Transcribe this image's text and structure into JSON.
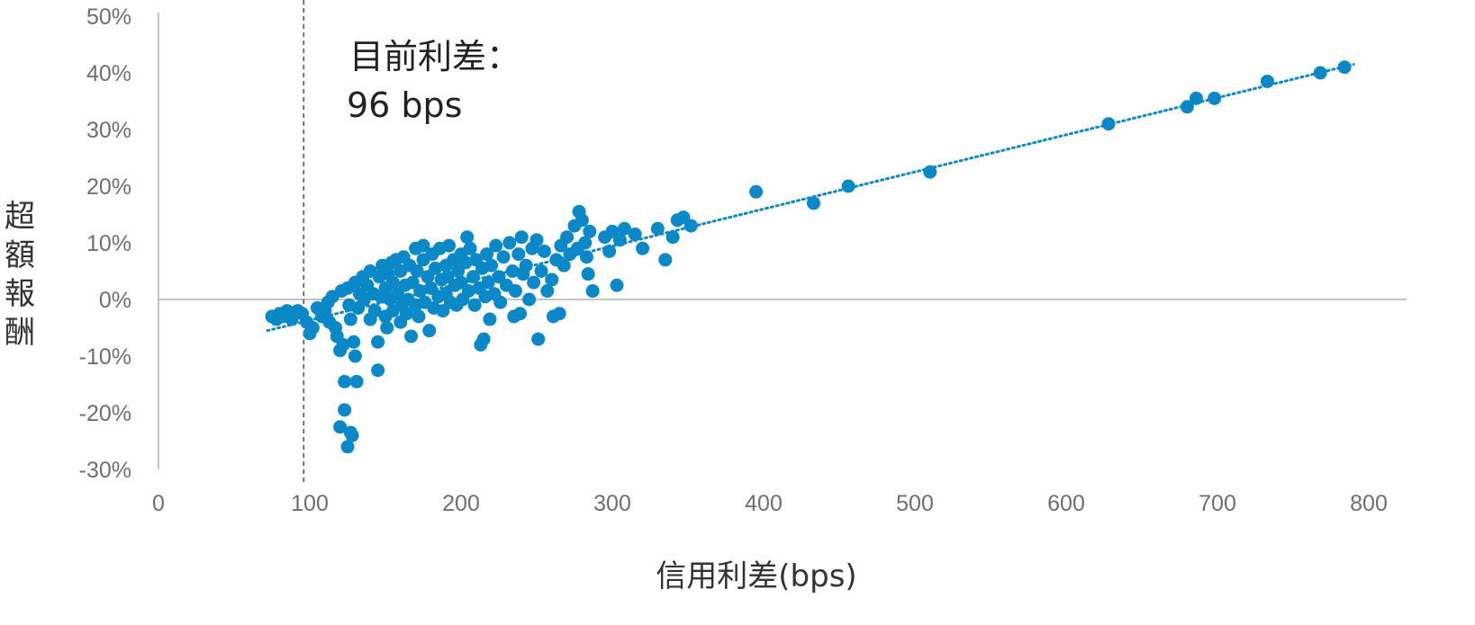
{
  "chart_data": {
    "type": "scatter",
    "title": "",
    "xlabel": "信用利差(bps)",
    "ylabel": "超額報酬",
    "xlim": [
      0,
      800
    ],
    "ylim": [
      -30,
      50
    ],
    "x_ticks": [
      "0",
      "100",
      "200",
      "300",
      "400",
      "500",
      "600",
      "700",
      "800"
    ],
    "y_ticks": [
      "50%",
      "40%",
      "30%",
      "20%",
      "10%",
      "0%",
      "-10%",
      "-20%",
      "-30%"
    ],
    "reference_line": {
      "x": 96,
      "style": "dashed"
    },
    "annotation": [
      "目前利差：",
      "96 bps"
    ],
    "trendline": {
      "style": "dotted",
      "start": [
        72,
        -5.5
      ],
      "end": [
        790,
        41.5
      ]
    },
    "colors": {
      "points": "#0a88c8",
      "trend": "#0a88c8",
      "axis": "#b0b0b0",
      "ref_line": "#555555"
    },
    "series": [
      {
        "points": [
          [
            75,
            -3
          ],
          [
            78,
            -3.5
          ],
          [
            80,
            -2.5
          ],
          [
            82,
            -3
          ],
          [
            85,
            -2
          ],
          [
            88,
            -3.5
          ],
          [
            92,
            -2
          ],
          [
            95,
            -2.5
          ],
          [
            98,
            -4
          ],
          [
            100,
            -6
          ],
          [
            102,
            -5
          ],
          [
            105,
            -1.5
          ],
          [
            108,
            -3
          ],
          [
            110,
            -2
          ],
          [
            112,
            -0.5
          ],
          [
            113,
            -4
          ],
          [
            115,
            0.5
          ],
          [
            117,
            -5
          ],
          [
            118,
            -6.5
          ],
          [
            120,
            -9
          ],
          [
            120,
            -22.5
          ],
          [
            121,
            1.5
          ],
          [
            122,
            -8
          ],
          [
            123,
            -14.5
          ],
          [
            123,
            -19.5
          ],
          [
            125,
            2
          ],
          [
            125,
            -26
          ],
          [
            126,
            -1
          ],
          [
            127,
            -3.5
          ],
          [
            127,
            -23.5
          ],
          [
            128,
            -24
          ],
          [
            129,
            -7.5
          ],
          [
            130,
            3
          ],
          [
            130,
            -10
          ],
          [
            131,
            -14.5
          ],
          [
            132,
            -1.5
          ],
          [
            133,
            1
          ],
          [
            135,
            4
          ],
          [
            136,
            0
          ],
          [
            138,
            2.5
          ],
          [
            140,
            -3.5
          ],
          [
            140,
            5
          ],
          [
            142,
            1
          ],
          [
            143,
            -2
          ],
          [
            145,
            -7.5
          ],
          [
            145,
            -12.5
          ],
          [
            146,
            4
          ],
          [
            147,
            0.5
          ],
          [
            148,
            6
          ],
          [
            150,
            -3
          ],
          [
            150,
            2
          ],
          [
            151,
            -5
          ],
          [
            152,
            4.5
          ],
          [
            153,
            0
          ],
          [
            154,
            6.5
          ],
          [
            155,
            -2
          ],
          [
            155,
            3
          ],
          [
            157,
            7
          ],
          [
            158,
            1
          ],
          [
            160,
            -4
          ],
          [
            160,
            5
          ],
          [
            161,
            -1
          ],
          [
            162,
            7.5
          ],
          [
            163,
            2.5
          ],
          [
            164,
            -2.5
          ],
          [
            165,
            0
          ],
          [
            166,
            6
          ],
          [
            167,
            -6.5
          ],
          [
            168,
            3
          ],
          [
            170,
            9
          ],
          [
            170,
            -1
          ],
          [
            171,
            5
          ],
          [
            172,
            -3
          ],
          [
            173,
            1.5
          ],
          [
            175,
            7
          ],
          [
            175,
            9.5
          ],
          [
            176,
            -0.5
          ],
          [
            178,
            4
          ],
          [
            179,
            -5.5
          ],
          [
            180,
            2
          ],
          [
            181,
            8
          ],
          [
            182,
            -1.5
          ],
          [
            183,
            5.5
          ],
          [
            185,
            0.5
          ],
          [
            186,
            9
          ],
          [
            187,
            3.5
          ],
          [
            188,
            -2
          ],
          [
            190,
            6
          ],
          [
            190,
            1
          ],
          [
            191,
            4
          ],
          [
            192,
            9.5
          ],
          [
            193,
            -0.5
          ],
          [
            195,
            7
          ],
          [
            196,
            2.5
          ],
          [
            197,
            -1
          ],
          [
            198,
            5
          ],
          [
            200,
            8
          ],
          [
            200,
            3
          ],
          [
            201,
            0
          ],
          [
            203,
            6.5
          ],
          [
            204,
            11
          ],
          [
            205,
            1.5
          ],
          [
            206,
            9
          ],
          [
            208,
            4
          ],
          [
            209,
            -1
          ],
          [
            210,
            7
          ],
          [
            212,
            2
          ],
          [
            213,
            -8
          ],
          [
            214,
            5.5
          ],
          [
            215,
            -7
          ],
          [
            216,
            0.5
          ],
          [
            217,
            8
          ],
          [
            218,
            3
          ],
          [
            219,
            -3.5
          ],
          [
            220,
            6
          ],
          [
            222,
            1
          ],
          [
            223,
            9.5
          ],
          [
            225,
            4
          ],
          [
            226,
            -0.5
          ],
          [
            228,
            7.5
          ],
          [
            230,
            2.5
          ],
          [
            232,
            10
          ],
          [
            234,
            5
          ],
          [
            235,
            -3
          ],
          [
            236,
            1.5
          ],
          [
            238,
            8
          ],
          [
            239,
            -2.5
          ],
          [
            240,
            11
          ],
          [
            241,
            4.5
          ],
          [
            243,
            6
          ],
          [
            245,
            0
          ],
          [
            247,
            9
          ],
          [
            248,
            3
          ],
          [
            250,
            10.5
          ],
          [
            251,
            -7
          ],
          [
            253,
            5
          ],
          [
            255,
            8.5
          ],
          [
            257,
            1.5
          ],
          [
            260,
            3.5
          ],
          [
            261,
            -3
          ],
          [
            263,
            7
          ],
          [
            265,
            -2.5
          ],
          [
            266,
            9.5
          ],
          [
            268,
            6
          ],
          [
            270,
            11
          ],
          [
            272,
            8
          ],
          [
            275,
            13
          ],
          [
            277,
            9
          ],
          [
            278,
            15.5
          ],
          [
            280,
            14
          ],
          [
            282,
            10
          ],
          [
            283,
            7.5
          ],
          [
            284,
            4.5
          ],
          [
            285,
            12
          ],
          [
            287,
            1.5
          ],
          [
            295,
            11
          ],
          [
            298,
            8.5
          ],
          [
            300,
            12
          ],
          [
            303,
            2.5
          ],
          [
            305,
            10.5
          ],
          [
            308,
            12.5
          ],
          [
            315,
            11.5
          ],
          [
            320,
            9
          ],
          [
            330,
            12.5
          ],
          [
            335,
            7
          ],
          [
            340,
            11
          ],
          [
            343,
            14
          ],
          [
            347,
            14.5
          ],
          [
            352,
            13
          ],
          [
            395,
            19
          ],
          [
            433,
            17
          ],
          [
            456,
            20
          ],
          [
            510,
            22.5
          ],
          [
            628,
            31
          ],
          [
            680,
            34
          ],
          [
            686,
            35.5
          ],
          [
            698,
            35.5
          ],
          [
            733,
            38.5
          ],
          [
            768,
            40
          ],
          [
            784,
            41
          ]
        ]
      }
    ]
  }
}
